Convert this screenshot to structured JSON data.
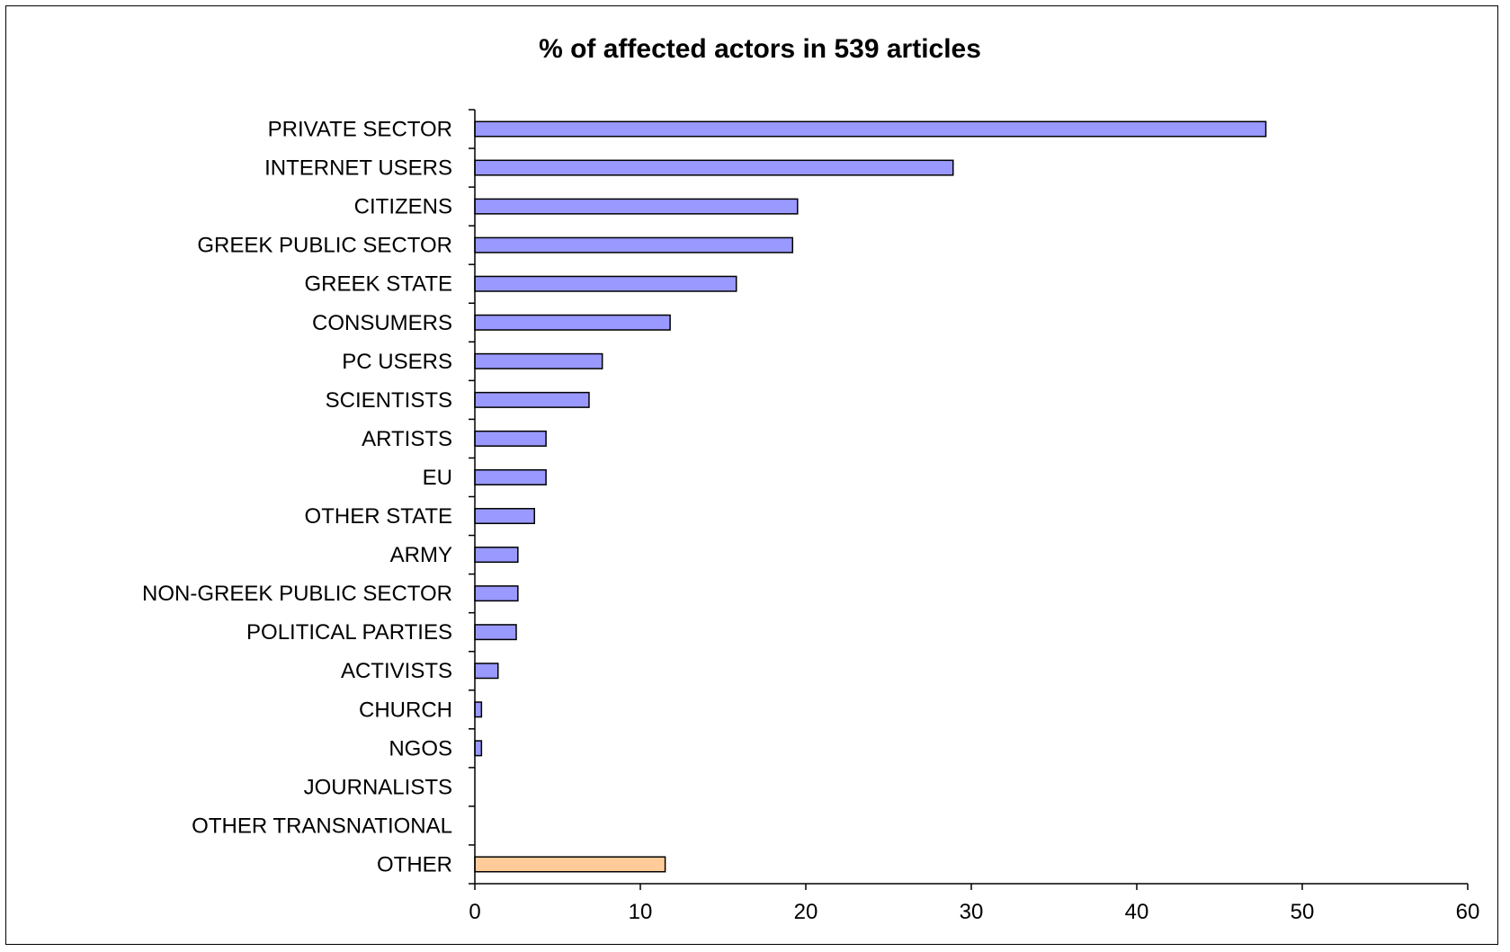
{
  "chart_data": {
    "type": "bar",
    "orientation": "horizontal",
    "title": "% of affected actors in 539 articles",
    "xlabel": "",
    "ylabel": "",
    "xlim": [
      0,
      60
    ],
    "x_ticks": [
      0,
      10,
      20,
      30,
      40,
      50,
      60
    ],
    "grid": false,
    "legend": "none",
    "categories": [
      "PRIVATE SECTOR",
      "INTERNET USERS",
      "CITIZENS",
      "GREEK PUBLIC SECTOR",
      "GREEK STATE",
      "CONSUMERS",
      "PC USERS",
      "SCIENTISTS",
      "ARTISTS",
      "EU",
      "OTHER STATE",
      "ARMY",
      "NON-GREEK PUBLIC SECTOR",
      "POLITICAL PARTIES",
      "ACTIVISTS",
      "CHURCH",
      "NGOS",
      "JOURNALISTS",
      "OTHER TRANSNATIONAL",
      "OTHER"
    ],
    "values": [
      47.8,
      28.9,
      19.5,
      19.2,
      15.8,
      11.8,
      7.7,
      6.9,
      4.3,
      4.3,
      3.6,
      2.6,
      2.6,
      2.5,
      1.4,
      0.4,
      0.4,
      0,
      0,
      11.5
    ],
    "bar_colors": [
      "#9999ff",
      "#9999ff",
      "#9999ff",
      "#9999ff",
      "#9999ff",
      "#9999ff",
      "#9999ff",
      "#9999ff",
      "#9999ff",
      "#9999ff",
      "#9999ff",
      "#9999ff",
      "#9999ff",
      "#9999ff",
      "#9999ff",
      "#9999ff",
      "#9999ff",
      "#9999ff",
      "#9999ff",
      "#ffcc99"
    ],
    "bar_stroke": "#000000"
  }
}
